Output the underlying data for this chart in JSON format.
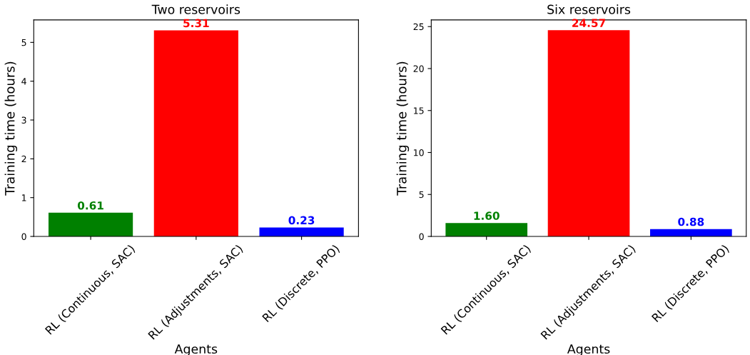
{
  "chart_data": [
    {
      "type": "bar",
      "title": "Two reservoirs",
      "xlabel": "Agents",
      "ylabel": "Training time (hours)",
      "categories": [
        "RL (Continuous, SAC)",
        "RL (Adjustments, SAC)",
        "RL (Discrete, PPO)"
      ],
      "values": [
        0.61,
        5.31,
        0.23
      ],
      "colors": [
        "#008000",
        "#ff0000",
        "#0000ff"
      ],
      "value_labels": [
        "0.61",
        "5.31",
        "0.23"
      ],
      "ylim": [
        0,
        5.58
      ],
      "yticks": [
        0,
        1,
        2,
        3,
        4,
        5
      ],
      "grid": false,
      "legend": false
    },
    {
      "type": "bar",
      "title": "Six reservoirs",
      "xlabel": "Agents",
      "ylabel": "Training time (hours)",
      "categories": [
        "RL (Continuous, SAC)",
        "RL (Adjustments, SAC)",
        "RL (Discrete, PPO)"
      ],
      "values": [
        1.6,
        24.57,
        0.88
      ],
      "colors": [
        "#008000",
        "#ff0000",
        "#0000ff"
      ],
      "value_labels": [
        "1.60",
        "24.57",
        "0.88"
      ],
      "ylim": [
        0,
        25.8
      ],
      "yticks": [
        0,
        5,
        10,
        15,
        20,
        25
      ],
      "grid": false,
      "legend": false
    }
  ]
}
